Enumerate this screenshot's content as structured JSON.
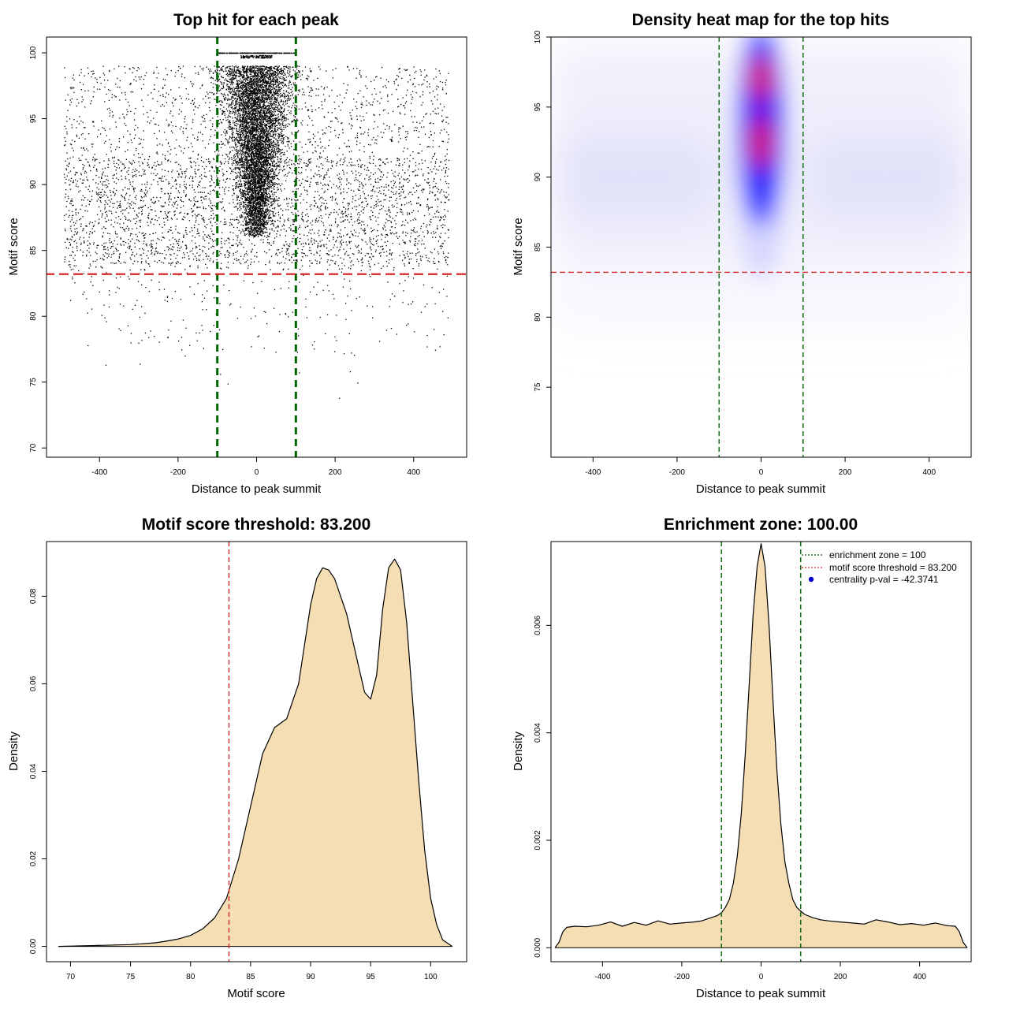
{
  "chart_data": [
    {
      "id": "scatter",
      "type": "scatter",
      "title": "Top hit for each peak",
      "xlabel": "Distance to peak summit",
      "ylabel": "Motif score",
      "xlim": [
        -535,
        535
      ],
      "ylim": [
        69.3,
        101.2
      ],
      "xticks": [
        -400,
        -200,
        0,
        200,
        400
      ],
      "yticks": [
        70,
        75,
        80,
        85,
        90,
        95,
        100
      ],
      "vlines": [
        -100,
        100
      ],
      "hlines": [
        83.2
      ],
      "vline_color": "#006400",
      "hline_color": "#d62728",
      "point_color": "#000000",
      "grid": false
    },
    {
      "id": "heatmap",
      "type": "heatmap",
      "title": "Density heat map for the top hits",
      "xlabel": "Distance to peak summit",
      "ylabel": "Motif score",
      "xlim": [
        -500,
        500
      ],
      "ylim": [
        70,
        100
      ],
      "xticks": [
        -400,
        -200,
        0,
        200,
        400
      ],
      "yticks": [
        75,
        80,
        85,
        90,
        95,
        100
      ],
      "vlines": [
        -100,
        100
      ],
      "hlines": [
        83.2
      ],
      "hotspots": [
        {
          "x": 0,
          "y": 97,
          "intensity": "red"
        },
        {
          "x": 0,
          "y": 92.5,
          "intensity": "red"
        }
      ],
      "grid": false
    },
    {
      "id": "score_density",
      "type": "area",
      "title": "Motif score threshold: 83.200",
      "xlabel": "Motif score",
      "ylabel": "Density",
      "xlim": [
        68,
        103
      ],
      "ylim": [
        -0.0035,
        0.0925
      ],
      "xticks": [
        70,
        75,
        80,
        85,
        90,
        95,
        100
      ],
      "yticks": [
        0,
        0.02,
        0.04,
        0.06,
        0.08
      ],
      "ytick_labels": [
        "0.00",
        "0.02",
        "0.04",
        "0.06",
        "0.08"
      ],
      "vlines": [
        83.2
      ],
      "fill_color": "#f5deb3",
      "x": [
        69,
        72,
        75,
        77,
        78,
        79,
        80,
        81,
        82,
        83,
        84,
        85,
        86,
        87,
        88,
        89,
        90,
        90.5,
        91,
        91.5,
        92,
        93,
        94,
        94.5,
        95,
        95.5,
        96,
        96.5,
        97,
        97.5,
        98,
        98.5,
        99,
        99.5,
        100,
        100.5,
        101,
        101.8
      ],
      "y": [
        0,
        0.0002,
        0.0004,
        0.0008,
        0.0012,
        0.0017,
        0.0025,
        0.004,
        0.0065,
        0.011,
        0.02,
        0.032,
        0.044,
        0.05,
        0.052,
        0.06,
        0.078,
        0.084,
        0.0865,
        0.086,
        0.084,
        0.076,
        0.064,
        0.058,
        0.0565,
        0.062,
        0.077,
        0.0865,
        0.0885,
        0.086,
        0.074,
        0.056,
        0.038,
        0.022,
        0.011,
        0.005,
        0.0015,
        0
      ]
    },
    {
      "id": "distance_density",
      "type": "area",
      "title": "Enrichment zone: 100.00",
      "xlabel": "Distance to peak summit",
      "ylabel": "Density",
      "xlim": [
        -530,
        530
      ],
      "ylim": [
        -0.00026,
        0.00756
      ],
      "xticks": [
        -400,
        -200,
        0,
        200,
        400
      ],
      "yticks": [
        0,
        0.002,
        0.004,
        0.006
      ],
      "ytick_labels": [
        "0.000",
        "0.002",
        "0.004",
        "0.006"
      ],
      "vlines": [
        -100,
        100
      ],
      "fill_color": "#f5deb3",
      "x": [
        -520,
        -510,
        -500,
        -490,
        -470,
        -440,
        -410,
        -380,
        -350,
        -320,
        -290,
        -260,
        -230,
        -200,
        -170,
        -150,
        -130,
        -110,
        -100,
        -90,
        -80,
        -70,
        -60,
        -50,
        -40,
        -30,
        -20,
        -10,
        0,
        10,
        20,
        30,
        40,
        50,
        60,
        70,
        80,
        90,
        100,
        110,
        130,
        150,
        170,
        200,
        230,
        260,
        290,
        320,
        350,
        380,
        410,
        440,
        470,
        490,
        500,
        510,
        520
      ],
      "y": [
        0,
        0.0001,
        0.0003,
        0.00038,
        0.0004,
        0.00039,
        0.00042,
        0.00048,
        0.0004,
        0.00047,
        0.00042,
        0.0005,
        0.00044,
        0.00046,
        0.00048,
        0.0005,
        0.00055,
        0.0006,
        0.00065,
        0.00075,
        0.0009,
        0.0012,
        0.0017,
        0.0025,
        0.0036,
        0.0049,
        0.0062,
        0.0071,
        0.00752,
        0.0071,
        0.006,
        0.0046,
        0.0033,
        0.0023,
        0.0016,
        0.0012,
        0.0009,
        0.00075,
        0.00068,
        0.00062,
        0.00056,
        0.00052,
        0.0005,
        0.00048,
        0.00046,
        0.00044,
        0.00052,
        0.00048,
        0.00043,
        0.00045,
        0.00042,
        0.00046,
        0.00041,
        0.0004,
        0.0003,
        0.0001,
        0
      ],
      "legend": {
        "placement": "top-right",
        "entries": [
          {
            "label": "enrichment zone = 100",
            "style": "dotted-line",
            "color": "#006400"
          },
          {
            "label": "motif score threshold = 83.200",
            "style": "dotted-line",
            "color": "#d62728"
          },
          {
            "label": "centrality p-val = -42.3741",
            "style": "point",
            "color": "#0000cc"
          }
        ]
      }
    }
  ]
}
